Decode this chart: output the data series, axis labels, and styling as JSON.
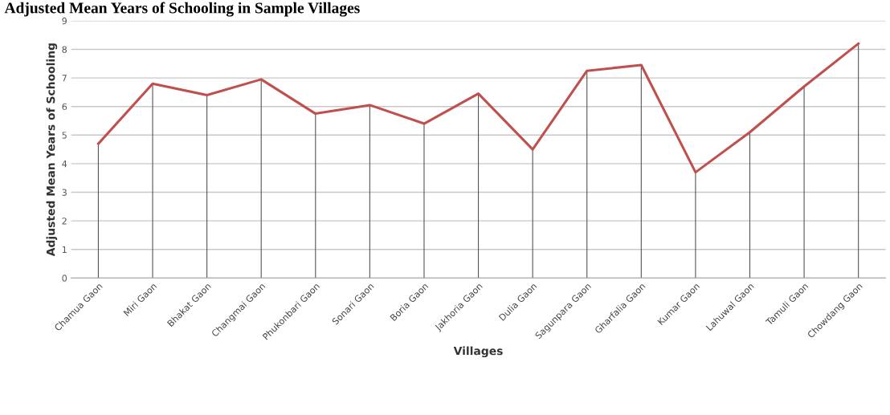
{
  "chart_data": {
    "type": "line",
    "title": "Adjusted Mean Years of Schooling in Sample Villages",
    "xlabel": "Villages",
    "ylabel": "Adjusted Mean Years of Schooling",
    "categories": [
      "Chamua Gaon",
      "Miri Gaon",
      "Bhakat Gaon",
      "Changmai Gaon",
      "Phukonbari Gaon",
      "Sonari Gaon",
      "Boria Gaon",
      "Jakhoria Gaon",
      "Dulia Gaon",
      "Sagunpara Gaon",
      "Gharfalia Gaon",
      "Kumar Gaon",
      "Lahuwal Gaon",
      "Tamuli Gaon",
      "Chowdang Gaon"
    ],
    "series": [
      {
        "color": "#c0504d",
        "values": [
          4.7,
          6.8,
          6.4,
          6.95,
          5.75,
          6.05,
          5.4,
          6.45,
          4.5,
          7.25,
          7.45,
          3.7,
          5.1,
          6.7,
          8.2
        ],
        "errors": [
          [
            4.7,
            0
          ],
          [
            6.8,
            0
          ],
          [
            6.4,
            0
          ],
          [
            6.95,
            0
          ],
          [
            5.75,
            0
          ],
          [
            6.05,
            0
          ],
          [
            5.4,
            0
          ],
          [
            6.45,
            0
          ],
          [
            4.5,
            0
          ],
          [
            7.25,
            0
          ],
          [
            7.45,
            0
          ],
          [
            3.7,
            0
          ],
          [
            5.1,
            0
          ],
          [
            6.7,
            0
          ],
          [
            8.2,
            0
          ]
        ]
      }
    ],
    "ylim": [
      0,
      9
    ],
    "yticks": [
      0,
      1,
      2,
      3,
      4,
      5,
      6,
      7,
      8,
      9
    ],
    "grid": "y",
    "marker": "none",
    "line_style": "solid"
  }
}
